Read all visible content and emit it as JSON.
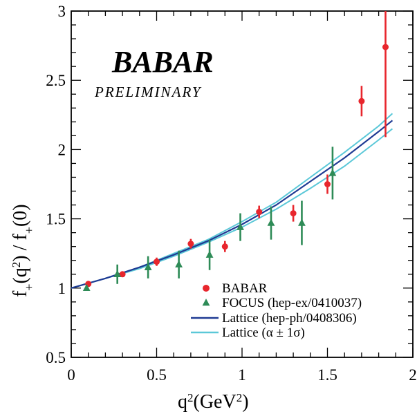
{
  "chart_data": {
    "type": "scatter",
    "xlabel": "q^2(GeV^2)",
    "ylabel": "f_+(q^2) / f_+(0)",
    "xlim": [
      0,
      2
    ],
    "ylim": [
      0.5,
      3
    ],
    "xticks": [
      "0",
      "0.5",
      "1",
      "1.5",
      "2"
    ],
    "yticks": [
      "0.5",
      "1",
      "1.5",
      "2",
      "2.5",
      "3"
    ],
    "logo": "BABAR",
    "annotation": "PRELIMINARY",
    "legend_position": "bottom-right",
    "series": [
      {
        "name": "BABAR",
        "marker": "circle",
        "color": "#e8262d",
        "points": [
          {
            "x": 0.1,
            "y": 1.03,
            "err": 0.012
          },
          {
            "x": 0.3,
            "y": 1.1,
            "err": 0.015
          },
          {
            "x": 0.5,
            "y": 1.19,
            "err": 0.03
          },
          {
            "x": 0.7,
            "y": 1.32,
            "err": 0.035
          },
          {
            "x": 0.9,
            "y": 1.3,
            "err": 0.04
          },
          {
            "x": 1.1,
            "y": 1.55,
            "err": 0.045
          },
          {
            "x": 1.3,
            "y": 1.54,
            "err": 0.06
          },
          {
            "x": 1.5,
            "y": 1.75,
            "err": 0.07
          },
          {
            "x": 1.7,
            "y": 2.35,
            "err": 0.11
          },
          {
            "x": 1.84,
            "y": 2.74,
            "err": 0.65
          }
        ]
      },
      {
        "name": "FOCUS (hep-ex/0410037)",
        "marker": "triangle",
        "color": "#2e8b57",
        "points": [
          {
            "x": 0.09,
            "y": 1.0,
            "err": 0.02
          },
          {
            "x": 0.27,
            "y": 1.1,
            "err": 0.07
          },
          {
            "x": 0.45,
            "y": 1.15,
            "err": 0.08
          },
          {
            "x": 0.63,
            "y": 1.17,
            "err": 0.1
          },
          {
            "x": 0.81,
            "y": 1.24,
            "err": 0.11
          },
          {
            "x": 0.99,
            "y": 1.44,
            "err": 0.1
          },
          {
            "x": 1.17,
            "y": 1.47,
            "err": 0.12
          },
          {
            "x": 1.35,
            "y": 1.47,
            "err": 0.16
          },
          {
            "x": 1.53,
            "y": 1.83,
            "err": 0.19
          }
        ]
      },
      {
        "name": "Lattice (hep-ph/0408306)",
        "type": "line",
        "color": "#1f3a93",
        "x": [
          0,
          0.2,
          0.4,
          0.6,
          0.8,
          1.0,
          1.2,
          1.4,
          1.6,
          1.8,
          1.88
        ],
        "y": [
          1.0,
          1.07,
          1.15,
          1.24,
          1.34,
          1.46,
          1.6,
          1.77,
          1.94,
          2.13,
          2.21
        ]
      },
      {
        "name": "Lattice (α ± 1σ)",
        "type": "band",
        "color": "#5bc8d8",
        "x": [
          0,
          0.2,
          0.4,
          0.6,
          0.8,
          1.0,
          1.2,
          1.4,
          1.6,
          1.8,
          1.88
        ],
        "y_upper": [
          1.0,
          1.07,
          1.15,
          1.25,
          1.35,
          1.48,
          1.62,
          1.8,
          1.98,
          2.17,
          2.26
        ],
        "y_lower": [
          1.0,
          1.07,
          1.14,
          1.23,
          1.33,
          1.44,
          1.57,
          1.72,
          1.88,
          2.07,
          2.15
        ]
      }
    ],
    "legend": [
      {
        "label": "BABAR",
        "symbol": "circle"
      },
      {
        "label": "FOCUS (hep-ex/0410037)",
        "symbol": "triangle"
      },
      {
        "label": "Lattice (hep-ph/0408306)",
        "symbol": "line-dark"
      },
      {
        "label": "Lattice (α ± 1σ)",
        "symbol": "line-light"
      }
    ]
  }
}
